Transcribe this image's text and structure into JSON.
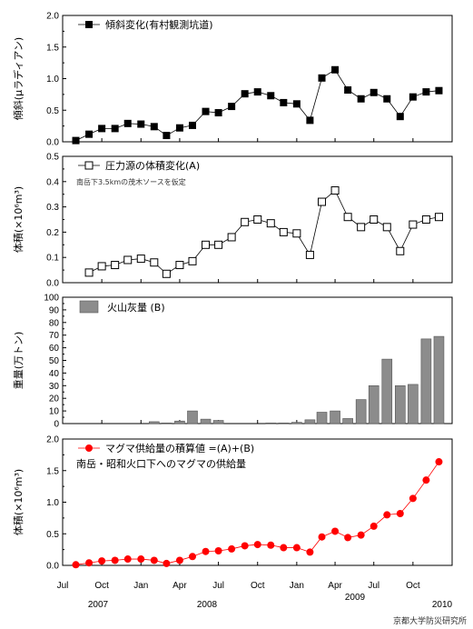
{
  "x_axis": {
    "months": [
      "Jul",
      "Oct",
      "Jan",
      "Apr",
      "Jul",
      "Oct",
      "Jan",
      "Apr",
      "Jul",
      "Oct"
    ],
    "years": [
      "2007",
      "2008",
      "2009",
      "2010"
    ]
  },
  "credit": "京都大学防災研究所",
  "chart_data": [
    {
      "type": "line",
      "legend": "傾斜変化(有村観測坑道)",
      "ylabel": "傾斜(μラディアン)",
      "yticks": [
        "0.0",
        "0.5",
        "1.0",
        "1.5",
        "2.0"
      ],
      "ylim": [
        0,
        2.0
      ],
      "marker": "filled-square",
      "color": "#000000",
      "series": [
        {
          "name": "傾斜変化(有村観測坑道)",
          "x": [
            "2007-08-01",
            "2007-09-01",
            "2007-10-01",
            "2007-11-01",
            "2007-12-01",
            "2008-01-01",
            "2008-02-01",
            "2008-03-01",
            "2008-04-01",
            "2008-05-01",
            "2008-06-01",
            "2008-07-01",
            "2008-08-01",
            "2008-09-01",
            "2008-10-01",
            "2008-11-01",
            "2008-12-01",
            "2009-01-01",
            "2009-02-01",
            "2009-03-01",
            "2009-04-01",
            "2009-05-01",
            "2009-06-01",
            "2009-07-01",
            "2009-08-01",
            "2009-09-01",
            "2009-10-01",
            "2009-11-01",
            "2009-12-01"
          ],
          "y": [
            0.02,
            0.12,
            0.21,
            0.21,
            0.29,
            0.28,
            0.24,
            0.1,
            0.22,
            0.26,
            0.48,
            0.46,
            0.56,
            0.76,
            0.79,
            0.73,
            0.62,
            0.6,
            0.34,
            1.01,
            1.14,
            0.82,
            0.68,
            0.78,
            0.68,
            0.4,
            0.71,
            0.79,
            0.81
          ]
        }
      ]
    },
    {
      "type": "line",
      "legend": "圧力源の体積変化(A)",
      "annotation": "南岳下3.5kmの茂木ソースを仮定",
      "ylabel": "体積(×10⁶m³)",
      "yticks": [
        "0.0",
        "0.1",
        "0.2",
        "0.3",
        "0.4",
        "0.5"
      ],
      "ylim": [
        0,
        0.5
      ],
      "marker": "open-square",
      "color": "#000000",
      "series": [
        {
          "name": "圧力源の体積変化(A)",
          "x": [
            "2007-09-01",
            "2007-10-01",
            "2007-11-01",
            "2007-12-01",
            "2008-01-01",
            "2008-02-01",
            "2008-03-01",
            "2008-04-01",
            "2008-05-01",
            "2008-06-01",
            "2008-07-01",
            "2008-08-01",
            "2008-09-01",
            "2008-10-01",
            "2008-11-01",
            "2008-12-01",
            "2009-01-01",
            "2009-02-01",
            "2009-03-01",
            "2009-04-01",
            "2009-05-01",
            "2009-06-01",
            "2009-07-01",
            "2009-08-01",
            "2009-09-01",
            "2009-10-01",
            "2009-11-01",
            "2009-12-01"
          ],
          "y": [
            0.04,
            0.065,
            0.07,
            0.09,
            0.095,
            0.08,
            0.035,
            0.07,
            0.085,
            0.15,
            0.15,
            0.18,
            0.24,
            0.25,
            0.235,
            0.2,
            0.195,
            0.11,
            0.32,
            0.365,
            0.26,
            0.22,
            0.25,
            0.22,
            0.125,
            0.23,
            0.25,
            0.26
          ]
        }
      ]
    },
    {
      "type": "bar",
      "legend": "火山灰量 (B)",
      "ylabel": "重量(万トン)",
      "yticks": [
        "0",
        "10",
        "20",
        "30",
        "40",
        "50",
        "60",
        "70",
        "80",
        "90",
        "100"
      ],
      "ylim": [
        0,
        100
      ],
      "color": "#8c8c8c",
      "series": [
        {
          "name": "火山灰量 (B)",
          "x": [
            "2008-02-01",
            "2008-03-01",
            "2008-04-01",
            "2008-05-01",
            "2008-06-01",
            "2008-07-01",
            "2008-11-01",
            "2008-12-01",
            "2009-01-01",
            "2009-02-01",
            "2009-03-01",
            "2009-04-01",
            "2009-05-01",
            "2009-06-01",
            "2009-07-01",
            "2009-08-01",
            "2009-09-01",
            "2009-10-01",
            "2009-11-01",
            "2009-12-01"
          ],
          "y": [
            1.5,
            0.5,
            2,
            10,
            3.5,
            2.5,
            0.5,
            0.5,
            1,
            3,
            9,
            10,
            4,
            19,
            30,
            51,
            30,
            31,
            67,
            69
          ]
        }
      ]
    },
    {
      "type": "line",
      "legend": "マグマ供給量の積算値 =(A)+(B)",
      "annotation": "南岳・昭和火口下へのマグマの供給量",
      "ylabel": "体積(×10⁶m³)",
      "yticks": [
        "0.0",
        "0.5",
        "1.0",
        "1.5",
        "2.0"
      ],
      "ylim": [
        0,
        2.0
      ],
      "marker": "filled-circle",
      "color": "#ff0000",
      "series": [
        {
          "name": "マグマ供給量の積算値 =(A)+(B)",
          "x": [
            "2007-08-01",
            "2007-09-01",
            "2007-10-01",
            "2007-11-01",
            "2007-12-01",
            "2008-01-01",
            "2008-02-01",
            "2008-03-01",
            "2008-04-01",
            "2008-05-01",
            "2008-06-01",
            "2008-07-01",
            "2008-08-01",
            "2008-09-01",
            "2008-10-01",
            "2008-11-01",
            "2008-12-01",
            "2009-01-01",
            "2009-02-01",
            "2009-03-01",
            "2009-04-01",
            "2009-05-01",
            "2009-06-01",
            "2009-07-01",
            "2009-08-01",
            "2009-09-01",
            "2009-10-01",
            "2009-11-01",
            "2009-12-01"
          ],
          "y": [
            0.01,
            0.04,
            0.07,
            0.08,
            0.1,
            0.1,
            0.08,
            0.03,
            0.08,
            0.14,
            0.22,
            0.23,
            0.26,
            0.31,
            0.33,
            0.32,
            0.28,
            0.28,
            0.21,
            0.45,
            0.54,
            0.44,
            0.48,
            0.62,
            0.8,
            0.82,
            1.06,
            1.35,
            1.64
          ]
        }
      ]
    }
  ]
}
